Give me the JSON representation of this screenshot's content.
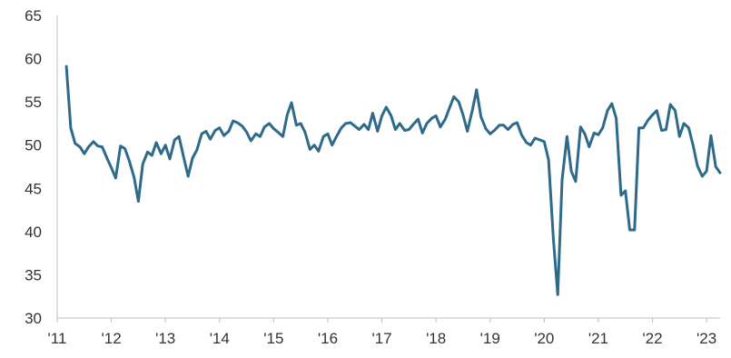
{
  "chart_data": {
    "type": "line",
    "title": "",
    "xlabel": "",
    "ylabel": "",
    "ylim": [
      30,
      65
    ],
    "xlim": [
      2011.0,
      2023.25
    ],
    "y_ticks": [
      30,
      35,
      40,
      45,
      50,
      55,
      60,
      65
    ],
    "y_tick_labels": [
      "30",
      "35",
      "40",
      "45",
      "50",
      "55",
      "60",
      "65"
    ],
    "x_ticks": [
      2011,
      2012,
      2013,
      2014,
      2015,
      2016,
      2017,
      2018,
      2019,
      2020,
      2021,
      2022,
      2023
    ],
    "x_tick_labels": [
      "'11",
      "'12",
      "'13",
      "'14",
      "'15",
      "'16",
      "'17",
      "'18",
      "'19",
      "'20",
      "'21",
      "'22",
      "'23"
    ],
    "grid": false,
    "legend": "none",
    "series": [
      {
        "color": "#2e6b8a",
        "x": [
          2011.17,
          2011.25,
          2011.33,
          2011.42,
          2011.5,
          2011.58,
          2011.67,
          2011.75,
          2011.83,
          2011.92,
          2012.0,
          2012.08,
          2012.17,
          2012.25,
          2012.33,
          2012.42,
          2012.5,
          2012.58,
          2012.67,
          2012.75,
          2012.83,
          2012.92,
          2013.0,
          2013.08,
          2013.17,
          2013.25,
          2013.33,
          2013.42,
          2013.5,
          2013.58,
          2013.67,
          2013.75,
          2013.83,
          2013.92,
          2014.0,
          2014.08,
          2014.17,
          2014.25,
          2014.33,
          2014.42,
          2014.5,
          2014.58,
          2014.67,
          2014.75,
          2014.83,
          2014.92,
          2015.0,
          2015.08,
          2015.17,
          2015.25,
          2015.33,
          2015.42,
          2015.5,
          2015.58,
          2015.67,
          2015.75,
          2015.83,
          2015.92,
          2016.0,
          2016.08,
          2016.17,
          2016.25,
          2016.33,
          2016.42,
          2016.5,
          2016.58,
          2016.67,
          2016.75,
          2016.83,
          2016.92,
          2017.0,
          2017.08,
          2017.17,
          2017.25,
          2017.33,
          2017.42,
          2017.5,
          2017.58,
          2017.67,
          2017.75,
          2017.83,
          2017.92,
          2018.0,
          2018.08,
          2018.17,
          2018.25,
          2018.33,
          2018.42,
          2018.5,
          2018.58,
          2018.67,
          2018.75,
          2018.83,
          2018.92,
          2019.0,
          2019.08,
          2019.17,
          2019.25,
          2019.33,
          2019.42,
          2019.5,
          2019.58,
          2019.67,
          2019.75,
          2019.83,
          2019.92,
          2020.0,
          2020.08,
          2020.17,
          2020.25,
          2020.33,
          2020.42,
          2020.5,
          2020.58,
          2020.67,
          2020.75,
          2020.83,
          2020.92,
          2021.0,
          2021.08,
          2021.17,
          2021.25,
          2021.33,
          2021.42,
          2021.5,
          2021.58,
          2021.67,
          2021.75,
          2021.83,
          2021.92,
          2022.0,
          2022.08,
          2022.17,
          2022.25,
          2022.33,
          2022.42,
          2022.5,
          2022.58,
          2022.67,
          2022.75,
          2022.83,
          2022.92,
          2023.0,
          2023.08,
          2023.17,
          2023.25
        ],
        "y": [
          59.1,
          52.0,
          50.2,
          49.8,
          49.0,
          49.8,
          50.4,
          49.9,
          49.8,
          48.5,
          47.4,
          46.2,
          49.9,
          49.6,
          48.2,
          46.3,
          43.5,
          47.8,
          49.2,
          48.8,
          50.3,
          49.0,
          50.0,
          48.4,
          50.6,
          51.0,
          48.8,
          46.4,
          48.5,
          49.4,
          51.3,
          51.6,
          50.7,
          51.7,
          52.0,
          51.1,
          51.6,
          52.8,
          52.6,
          52.2,
          51.5,
          50.5,
          51.3,
          51.0,
          52.1,
          52.5,
          51.9,
          51.5,
          51.0,
          53.5,
          54.9,
          52.3,
          52.5,
          51.5,
          49.5,
          50.0,
          49.3,
          51.0,
          51.3,
          50.0,
          51.1,
          52.0,
          52.5,
          52.6,
          52.2,
          51.8,
          52.4,
          51.8,
          53.7,
          51.6,
          53.4,
          54.4,
          53.4,
          51.8,
          52.5,
          51.7,
          51.8,
          52.4,
          53.0,
          51.4,
          52.5,
          53.1,
          53.4,
          52.1,
          53.0,
          54.3,
          55.6,
          55.0,
          53.5,
          51.6,
          54.0,
          56.4,
          53.3,
          51.9,
          51.3,
          51.7,
          52.3,
          52.3,
          51.8,
          52.4,
          52.6,
          51.2,
          50.3,
          50.0,
          50.8,
          50.6,
          50.4,
          48.3,
          39.0,
          32.7,
          46.0,
          51.0,
          47.0,
          45.8,
          52.1,
          51.3,
          49.8,
          51.4,
          51.2,
          52.0,
          54.0,
          54.8,
          53.1,
          44.2,
          44.7,
          40.2,
          40.2,
          52.0,
          52.0,
          52.9,
          53.5,
          54.0,
          51.7,
          51.8,
          54.7,
          54.0,
          51.0,
          52.5,
          52.0,
          50.0,
          47.6,
          46.4,
          47.0,
          51.1,
          47.5,
          46.8
        ]
      }
    ]
  }
}
